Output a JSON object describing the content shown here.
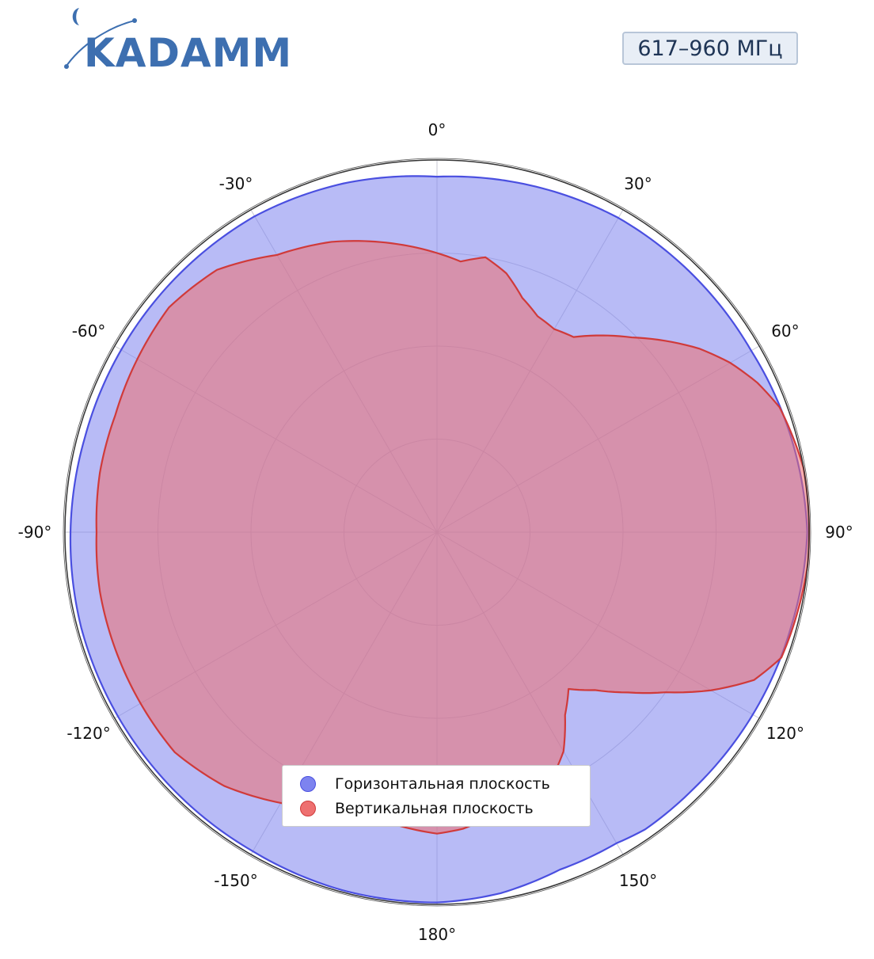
{
  "brand": {
    "logo_text": "KADAMM",
    "colors": {
      "primary": "#3d6fb0"
    }
  },
  "frequency_badge": {
    "text": "617–960 МГц"
  },
  "chart_data": {
    "type": "polar-area",
    "angular_unit": "deg",
    "direction": "clockwise",
    "zero_location": "top",
    "theta_ticks": [
      0,
      30,
      60,
      90,
      120,
      150,
      180,
      -150,
      -120,
      -90,
      -60,
      -30
    ],
    "theta_tick_labels": [
      "0°",
      "30°",
      "60°",
      "90°",
      "120°",
      "150°",
      "180°",
      "-150°",
      "-120°",
      "-90°",
      "-60°",
      "-30°"
    ],
    "r_range": [
      0,
      1
    ],
    "r_rings": [
      0.25,
      0.5,
      0.75,
      1.0
    ],
    "radial_labels_shown": false,
    "grid": true,
    "series": [
      {
        "name": "Горизонтальная плоскость",
        "color": "#4a4fe0",
        "fill": "#7d83ef",
        "points": [
          [
            -180,
            0.995
          ],
          [
            -165,
            0.995
          ],
          [
            -150,
            0.99
          ],
          [
            -135,
            0.99
          ],
          [
            -120,
            0.99
          ],
          [
            -105,
            0.99
          ],
          [
            -90,
            0.985
          ],
          [
            -75,
            0.98
          ],
          [
            -60,
            0.98
          ],
          [
            -45,
            0.98
          ],
          [
            -30,
            0.98
          ],
          [
            -15,
            0.97
          ],
          [
            0,
            0.955
          ],
          [
            15,
            0.965
          ],
          [
            30,
            0.975
          ],
          [
            45,
            0.975
          ],
          [
            60,
            0.975
          ],
          [
            75,
            0.985
          ],
          [
            90,
            0.995
          ],
          [
            105,
            0.985
          ],
          [
            120,
            0.98
          ],
          [
            135,
            0.975
          ],
          [
            145,
            0.975
          ],
          [
            150,
            0.965
          ],
          [
            160,
            0.965
          ],
          [
            170,
            0.985
          ],
          [
            180,
            0.995
          ]
        ]
      },
      {
        "name": "Вертикальная плоскость",
        "color": "#d03a3a",
        "fill": "#ee7070",
        "points": [
          [
            -180,
            0.81
          ],
          [
            -170,
            0.79
          ],
          [
            -160,
            0.8
          ],
          [
            -150,
            0.84
          ],
          [
            -140,
            0.89
          ],
          [
            -130,
            0.92
          ],
          [
            -120,
            0.92
          ],
          [
            -110,
            0.92
          ],
          [
            -100,
            0.92
          ],
          [
            -90,
            0.915
          ],
          [
            -80,
            0.92
          ],
          [
            -70,
            0.92
          ],
          [
            -60,
            0.93
          ],
          [
            -50,
            0.94
          ],
          [
            -40,
            0.92
          ],
          [
            -30,
            0.86
          ],
          [
            -20,
            0.83
          ],
          [
            -10,
            0.79
          ],
          [
            0,
            0.75
          ],
          [
            5,
            0.73
          ],
          [
            10,
            0.75
          ],
          [
            15,
            0.72
          ],
          [
            20,
            0.67
          ],
          [
            25,
            0.64
          ],
          [
            30,
            0.63
          ],
          [
            35,
            0.64
          ],
          [
            40,
            0.69
          ],
          [
            45,
            0.74
          ],
          [
            50,
            0.8
          ],
          [
            55,
            0.86
          ],
          [
            60,
            0.91
          ],
          [
            65,
            0.95
          ],
          [
            70,
            0.98
          ],
          [
            75,
            0.99
          ],
          [
            80,
            1.0
          ],
          [
            85,
            1.0
          ],
          [
            90,
            1.0
          ],
          [
            95,
            1.0
          ],
          [
            100,
            0.995
          ],
          [
            105,
            0.99
          ],
          [
            110,
            0.985
          ],
          [
            115,
            0.94
          ],
          [
            120,
            0.85
          ],
          [
            125,
            0.75
          ],
          [
            130,
            0.67
          ],
          [
            135,
            0.6
          ],
          [
            140,
            0.55
          ],
          [
            145,
            0.6
          ],
          [
            150,
            0.68
          ],
          [
            155,
            0.73
          ],
          [
            160,
            0.75
          ],
          [
            165,
            0.77
          ],
          [
            170,
            0.78
          ],
          [
            175,
            0.8
          ],
          [
            180,
            0.81
          ]
        ]
      }
    ],
    "legend": {
      "placement": "bottom-center"
    }
  }
}
